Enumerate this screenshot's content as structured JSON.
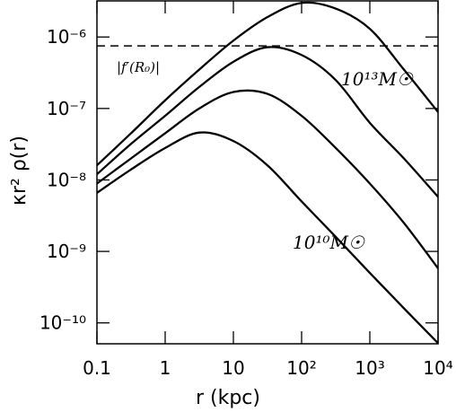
{
  "chart_data": {
    "type": "line",
    "xlabel": "r (kpc)",
    "ylabel": "κr² ρ(r)",
    "xscale": "log",
    "yscale": "log",
    "xlim": [
      0.1,
      10000
    ],
    "ylim": [
      5.1e-11,
      3.2e-06
    ],
    "xticks": [
      0.1,
      1,
      10,
      {
        "value": 100,
        "label": "10²"
      },
      {
        "value": 1000,
        "label": "10³"
      },
      {
        "value": 10000,
        "label": "10⁴"
      }
    ],
    "yticks": [
      {
        "value": 1e-10,
        "label": "10⁻¹⁰"
      },
      {
        "value": 1e-09,
        "label": "10⁻⁹"
      },
      {
        "value": 1e-08,
        "label": "10⁻⁸"
      },
      {
        "value": 1e-07,
        "label": "10⁻⁷"
      },
      {
        "value": 1e-06,
        "label": "10⁻⁶"
      }
    ],
    "x": [
      0.1,
      0.316,
      1,
      3.16,
      10,
      31.6,
      100,
      316,
      1000,
      3160,
      10000
    ],
    "series": [
      {
        "color": "#000000",
        "values": [
          6.6e-09,
          1.4e-08,
          2.8e-08,
          4.6e-08,
          3.5e-08,
          1.6e-08,
          5e-09,
          1.6e-09,
          5e-10,
          1.6e-10,
          5.2e-11
        ]
      },
      {
        "color": "#000000",
        "values": [
          8.9e-09,
          2e-08,
          4.5e-08,
          1e-07,
          1.7e-07,
          1.6e-07,
          7.9e-08,
          2.8e-08,
          8.9e-09,
          2.5e-09,
          5.8e-10
        ]
      },
      {
        "color": "#000000",
        "values": [
          1.2e-08,
          3.2e-08,
          7.9e-08,
          2e-07,
          4.5e-07,
          7.2e-07,
          5.6e-07,
          2.5e-07,
          6.3e-08,
          2e-08,
          5.8e-09
        ]
      },
      {
        "color": "#000000",
        "values": [
          1.6e-08,
          4.5e-08,
          1.3e-07,
          3.5e-07,
          8.9e-07,
          1.9e-06,
          3e-06,
          2.5e-06,
          1.3e-06,
          3.5e-07,
          8.9e-08
        ]
      }
    ],
    "reference_line": {
      "value": 7.5e-07,
      "label": "|f′(R₀)|",
      "style": "dashed"
    },
    "annotations": [
      "10¹³M☉",
      "10¹⁰M☉"
    ]
  }
}
